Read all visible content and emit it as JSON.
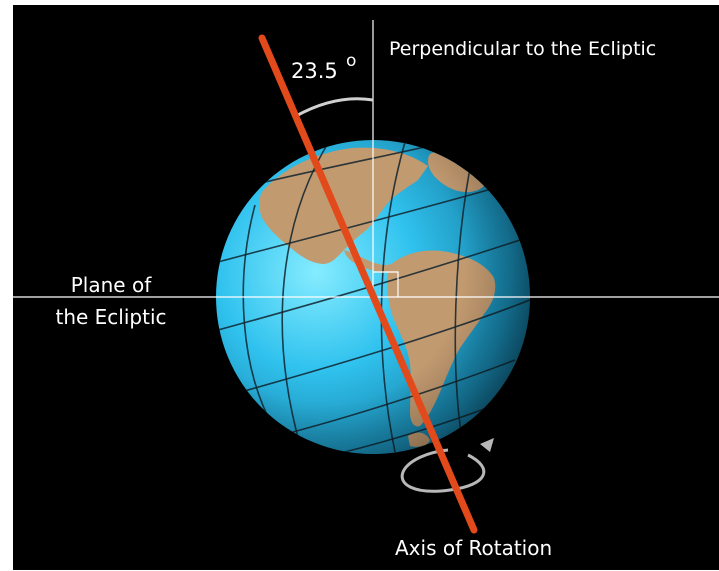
{
  "labels": {
    "angle_value": "23.5",
    "angle_unit": "o",
    "perpendicular": "Perpendicular to the Ecliptic",
    "plane_line1": "Plane of",
    "plane_line2": "the Ecliptic",
    "axis": "Axis of Rotation"
  },
  "axial_tilt_degrees": 23.5,
  "colors": {
    "background": "#000000",
    "ocean": "#29b7e3",
    "land": "#c19a72",
    "axis": "#e24a1c",
    "guide_lines": "#ffffff",
    "grid_lines": "#10232e"
  }
}
